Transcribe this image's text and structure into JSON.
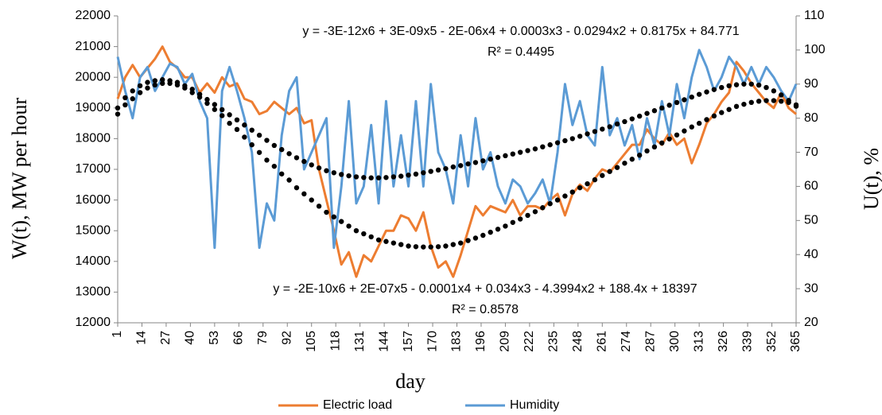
{
  "chart_data": {
    "type": "line",
    "ylabel": "W(t), MW per hour",
    "y2label": "U(t), %",
    "xlabel": "day",
    "xlim": [
      1,
      365
    ],
    "xticks": [
      1,
      14,
      27,
      40,
      53,
      66,
      79,
      92,
      105,
      118,
      131,
      144,
      157,
      170,
      183,
      196,
      209,
      222,
      235,
      248,
      261,
      274,
      287,
      300,
      313,
      326,
      339,
      352,
      365
    ],
    "ylim": [
      12000,
      22000
    ],
    "yticks": [
      12000,
      13000,
      14000,
      15000,
      16000,
      17000,
      18000,
      19000,
      20000,
      21000,
      22000
    ],
    "y2lim": [
      20,
      110
    ],
    "y2ticks": [
      20,
      30,
      40,
      50,
      60,
      70,
      80,
      90,
      100,
      110
    ],
    "grid": false,
    "legend": "bottom",
    "x": [
      1,
      5,
      9,
      13,
      17,
      21,
      25,
      29,
      33,
      37,
      41,
      45,
      49,
      53,
      57,
      61,
      65,
      69,
      73,
      77,
      81,
      85,
      89,
      93,
      97,
      101,
      105,
      109,
      113,
      117,
      121,
      125,
      129,
      133,
      137,
      141,
      145,
      149,
      153,
      157,
      161,
      165,
      169,
      173,
      177,
      181,
      185,
      189,
      193,
      197,
      201,
      205,
      209,
      213,
      217,
      221,
      225,
      229,
      233,
      237,
      241,
      245,
      249,
      253,
      257,
      261,
      265,
      269,
      273,
      277,
      281,
      285,
      289,
      293,
      297,
      301,
      305,
      309,
      313,
      317,
      321,
      325,
      329,
      333,
      337,
      341,
      345,
      349,
      353,
      357,
      361,
      365
    ],
    "series": [
      {
        "name": "Electric load",
        "color": "#ED7D31",
        "axis": "y",
        "values": [
          19300,
          20000,
          20400,
          20000,
          20300,
          20600,
          21000,
          20500,
          20300,
          20000,
          20000,
          19500,
          19800,
          19500,
          20000,
          19700,
          19800,
          19300,
          19200,
          18800,
          18900,
          19200,
          19000,
          18800,
          19000,
          18500,
          18600,
          17000,
          16000,
          15000,
          13900,
          14300,
          13500,
          14200,
          14000,
          14500,
          15000,
          15000,
          15500,
          15400,
          15000,
          15600,
          14500,
          13800,
          14000,
          13500,
          14200,
          15000,
          15800,
          15500,
          15800,
          15700,
          15600,
          16000,
          15500,
          15800,
          15800,
          15700,
          16000,
          16200,
          15500,
          16200,
          16500,
          16300,
          16700,
          17000,
          16900,
          17200,
          17500,
          17800,
          17800,
          18300,
          18000,
          17800,
          18200,
          17800,
          18000,
          17200,
          17800,
          18500,
          18800,
          19200,
          19500,
          20500,
          20200,
          19800,
          19500,
          19200,
          19000,
          19500,
          19000,
          18800
        ]
      },
      {
        "name": "Humidity",
        "color": "#5B9BD5",
        "axis": "y2",
        "values": [
          98,
          88,
          80,
          92,
          95,
          88,
          92,
          96,
          95,
          90,
          93,
          85,
          80,
          42,
          88,
          95,
          88,
          80,
          70,
          42,
          55,
          50,
          75,
          88,
          92,
          65,
          70,
          75,
          80,
          42,
          60,
          85,
          55,
          60,
          78,
          55,
          85,
          60,
          75,
          60,
          85,
          60,
          90,
          70,
          65,
          55,
          75,
          60,
          80,
          65,
          70,
          60,
          55,
          62,
          60,
          55,
          58,
          62,
          55,
          70,
          90,
          78,
          85,
          75,
          72,
          95,
          75,
          80,
          72,
          78,
          68,
          80,
          72,
          85,
          75,
          90,
          80,
          92,
          100,
          95,
          88,
          92,
          98,
          95,
          90,
          95,
          90,
          95,
          92,
          88,
          85,
          90
        ]
      }
    ],
    "trendlines": [
      {
        "axis": "y2",
        "color": "#000000",
        "equation": "y = -3E-12x6 + 3E-09x5 - 2E-06x4 + 0.0003x3 - 0.0294x2 + 0.8175x + 84.771",
        "r2": "R² = 0.4495",
        "values": [
          83,
          86,
          88,
          89.5,
          90.5,
          91,
          91.3,
          91,
          90.5,
          89.5,
          88.5,
          87,
          85.5,
          84,
          82.5,
          81,
          79.5,
          78,
          76.5,
          75,
          73.5,
          72,
          70.8,
          69.6,
          68.4,
          67.3,
          66.3,
          65.4,
          64.6,
          64,
          63.5,
          63.1,
          62.8,
          62.6,
          62.5,
          62.5,
          62.6,
          62.8,
          63,
          63.3,
          63.6,
          64,
          64.4,
          64.8,
          65.2,
          65.7,
          66.1,
          66.6,
          67,
          67.5,
          68,
          68.5,
          69,
          69.5,
          70,
          70.5,
          71,
          71.6,
          72.2,
          72.8,
          73.4,
          74,
          74.7,
          75.4,
          76.1,
          76.8,
          77.5,
          78.3,
          79,
          79.8,
          80.6,
          81.4,
          82.2,
          83,
          83.8,
          84.6,
          85.4,
          86.2,
          87,
          87.7,
          88.4,
          89,
          89.5,
          89.8,
          90,
          90,
          89.7,
          89,
          88,
          86.8,
          85.2,
          83.5
        ]
      },
      {
        "axis": "y",
        "color": "#000000",
        "equation": "y = -2E-10x6 + 2E-07x5 - 0.0001x4 + 0.034x3 - 4.3994x2 + 188.4x + 18397",
        "r2": "R² = 0.8578",
        "values": [
          18800,
          19100,
          19300,
          19500,
          19650,
          19750,
          19800,
          19800,
          19750,
          19650,
          19500,
          19350,
          19150,
          18950,
          18750,
          18500,
          18300,
          18050,
          17800,
          17550,
          17300,
          17100,
          16850,
          16650,
          16400,
          16200,
          16000,
          15800,
          15600,
          15450,
          15300,
          15150,
          15000,
          14900,
          14800,
          14700,
          14650,
          14600,
          14550,
          14500,
          14480,
          14470,
          14470,
          14480,
          14500,
          14550,
          14600,
          14680,
          14760,
          14850,
          14950,
          15050,
          15150,
          15270,
          15380,
          15500,
          15620,
          15750,
          15880,
          16000,
          16130,
          16260,
          16400,
          16530,
          16660,
          16800,
          16930,
          17060,
          17200,
          17330,
          17460,
          17600,
          17730,
          17860,
          17990,
          18120,
          18250,
          18380,
          18500,
          18620,
          18740,
          18850,
          18950,
          19050,
          19120,
          19180,
          19220,
          19240,
          19240,
          19220,
          19180,
          19100
        ]
      }
    ]
  }
}
